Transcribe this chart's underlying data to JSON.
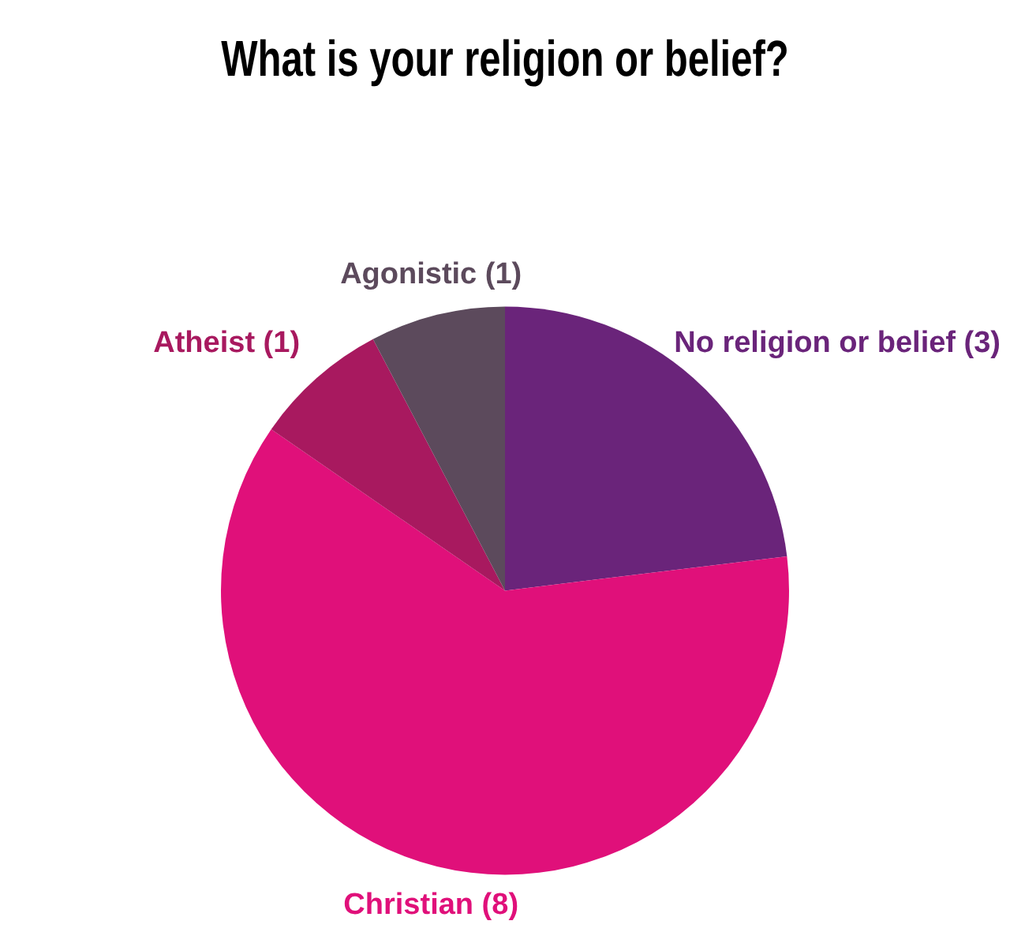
{
  "chart_data": {
    "type": "pie",
    "title": "What is your religion or belief?",
    "categories": [
      "No religion or belief",
      "Christian",
      "Atheist",
      "Agonistic"
    ],
    "values": [
      3,
      8,
      1,
      1
    ],
    "colors": [
      "#6a247a",
      "#e0107a",
      "#a8195f",
      "#5c4a5c"
    ],
    "value_labels": [
      "(3)",
      "(8)",
      "(1)",
      "(1)"
    ],
    "legend": false
  }
}
